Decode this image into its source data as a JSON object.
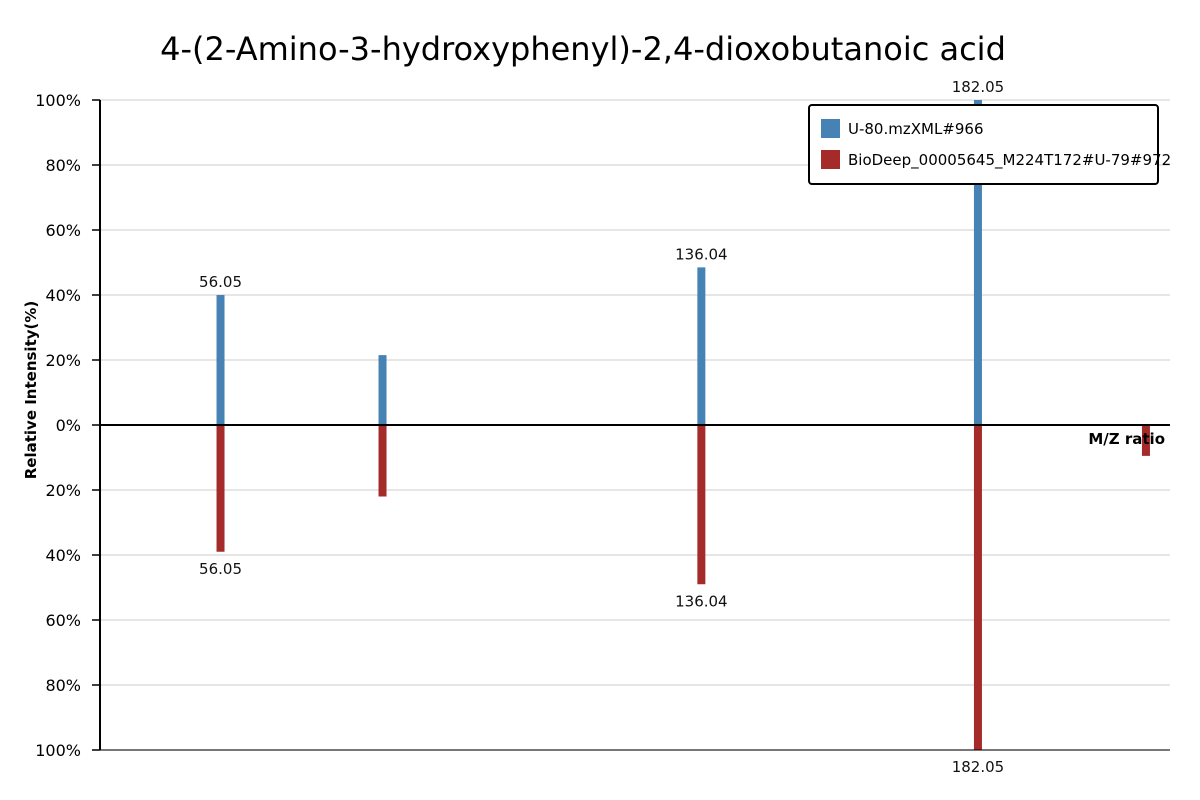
{
  "chart_data": {
    "type": "bar",
    "title": "4-(2-Amino-3-hydroxyphenyl)-2,4-dioxobutanoic acid",
    "ylabel": "Relative Intensity(%)",
    "xlabel": "M/Z ratio",
    "ylim": [
      -100,
      100
    ],
    "y_tick_values": [
      100,
      80,
      60,
      40,
      20,
      0,
      -20,
      -40,
      -60,
      -80,
      -100
    ],
    "y_tick_labels": [
      "100%",
      "80%",
      "60%",
      "40%",
      "20%",
      "0%",
      "20%",
      "40%",
      "60%",
      "80%",
      "100%"
    ],
    "xlim": [
      36,
      214
    ],
    "grid": true,
    "legend_position": "top-right",
    "series": [
      {
        "name": "U-80.mzXML#966",
        "color": "#4682b4",
        "direction": "up",
        "peaks": [
          {
            "mz": 56.05,
            "intensity": 40,
            "label": "56.05"
          },
          {
            "mz": 83.0,
            "intensity": 21.5,
            "label": ""
          },
          {
            "mz": 136.04,
            "intensity": 48.5,
            "label": "136.04"
          },
          {
            "mz": 182.05,
            "intensity": 100,
            "label": "182.05"
          }
        ]
      },
      {
        "name": "BioDeep_00005645_M224T172#U-79#972",
        "color": "#a52a2a",
        "direction": "down",
        "peaks": [
          {
            "mz": 56.05,
            "intensity": 39,
            "label": "56.05"
          },
          {
            "mz": 83.0,
            "intensity": 22,
            "label": ""
          },
          {
            "mz": 136.04,
            "intensity": 49,
            "label": "136.04"
          },
          {
            "mz": 182.05,
            "intensity": 100,
            "label": "182.05"
          },
          {
            "mz": 210.0,
            "intensity": 9.5,
            "label": ""
          }
        ]
      }
    ]
  }
}
